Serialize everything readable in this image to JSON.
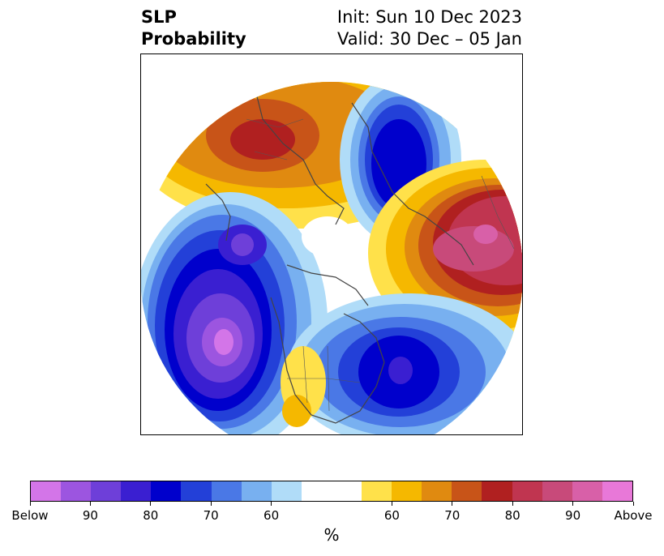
{
  "title": {
    "left_line1": "SLP",
    "left_line2": "Probability",
    "right_line1": "Init: Sun 10 Dec 2023",
    "right_line2": "Valid: 30 Dec – 05 Jan"
  },
  "colorbar": {
    "colors": [
      "#d375e8",
      "#9c55e0",
      "#6e3fd9",
      "#3a1fd1",
      "#0000cc",
      "#2340d8",
      "#4a78e6",
      "#78b0f0",
      "#b0dcf8",
      "#ffffff",
      "#ffffff",
      "#ffe14a",
      "#f5b800",
      "#e08a10",
      "#c85418",
      "#b02020",
      "#c03550",
      "#c84a7a",
      "#d860a8",
      "#e878d8"
    ],
    "tick_labels": [
      "Below",
      "90",
      "80",
      "70",
      "60",
      "60",
      "70",
      "80",
      "90",
      "Above"
    ],
    "unit": "%"
  },
  "map": {
    "projection": "north-polar-stereographic",
    "variable": "sea level pressure tercile probability",
    "below_color_scale": "blue-purple",
    "above_color_scale": "yellow-red-pink"
  }
}
